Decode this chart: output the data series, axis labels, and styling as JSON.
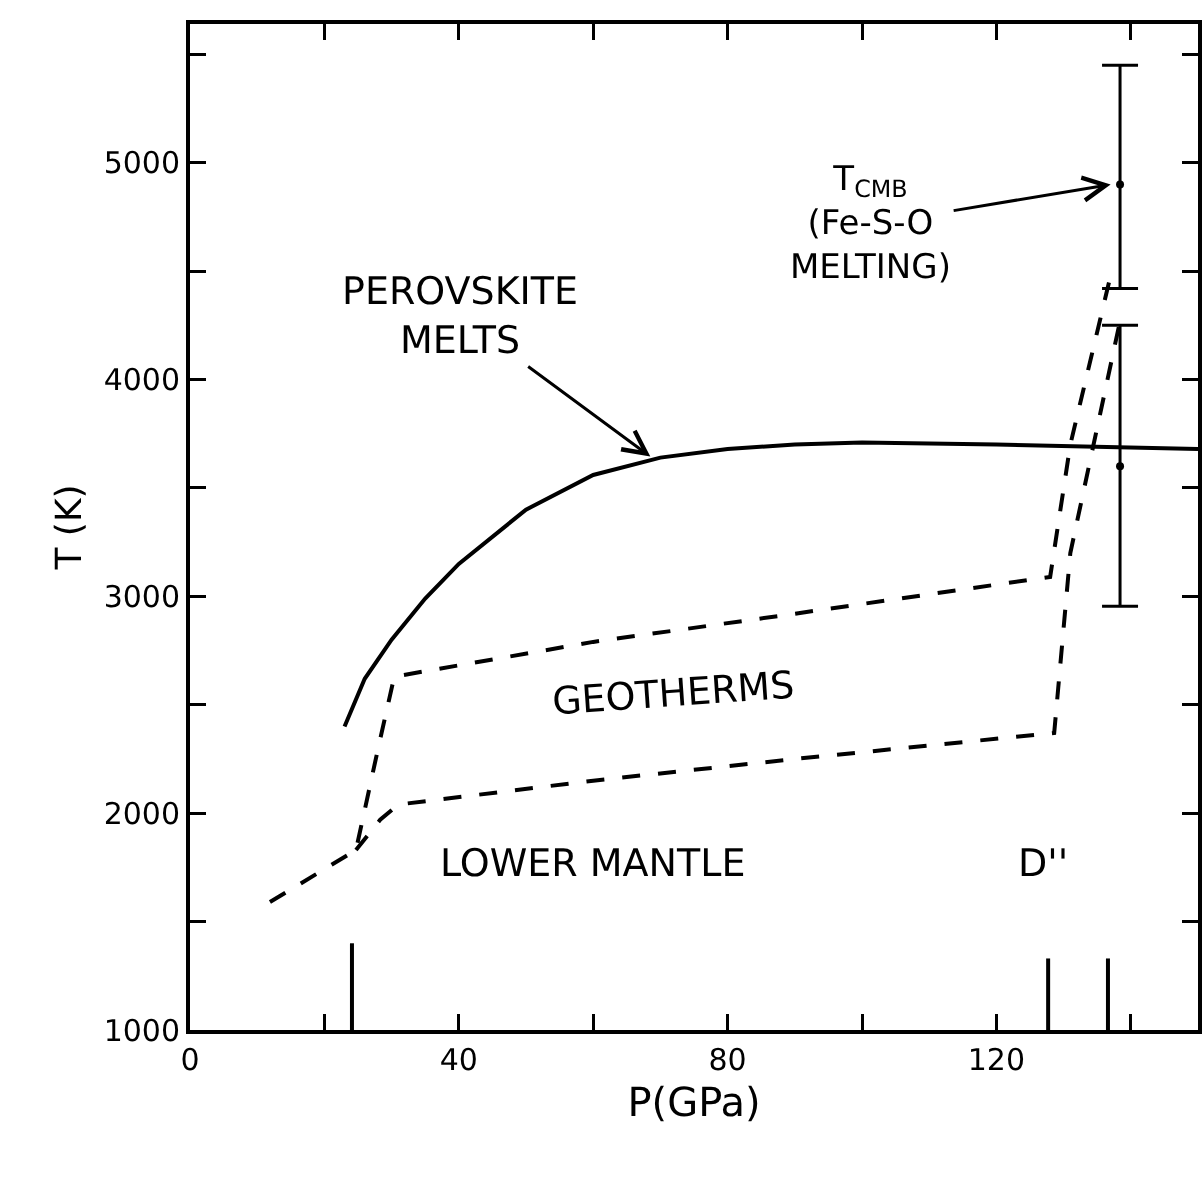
{
  "chart_data": {
    "type": "line",
    "xlabel": "P(GPa)",
    "ylabel": "T (K)",
    "xlim": [
      0,
      150
    ],
    "ylim": [
      1000,
      5640
    ],
    "xticks": [
      0,
      {
        "value": 20,
        "label": null
      },
      40,
      {
        "value": 60,
        "label": null
      },
      80,
      {
        "value": 100,
        "label": null
      },
      120,
      {
        "value": 140,
        "label": null
      }
    ],
    "yticks": [
      1000,
      {
        "value": 1500,
        "label": null
      },
      2000,
      {
        "value": 2500,
        "label": null
      },
      3000,
      {
        "value": 3500,
        "label": null
      },
      4000,
      {
        "value": 4500,
        "label": null
      },
      5000,
      {
        "value": 5500,
        "label": null
      }
    ],
    "grid": false,
    "marker": "none",
    "series": [
      {
        "line_style": "solid",
        "color": "#000000",
        "x": [
          23,
          26,
          30,
          35,
          40,
          50,
          60,
          70,
          80,
          90,
          100,
          120,
          150
        ],
        "values": [
          2400,
          2620,
          2800,
          2990,
          3150,
          3400,
          3560,
          3640,
          3680,
          3700,
          3710,
          3700,
          3680
        ]
      },
      {
        "line_style": "dashed",
        "color": "#000000",
        "x": [
          11.9,
          24.7,
          28,
          30.4,
          60,
          90,
          128,
          131,
          137
        ],
        "values": [
          1590,
          1830,
          2300,
          2630,
          2790,
          2920,
          3090,
          3700,
          4480
        ]
      },
      {
        "line_style": "dashed",
        "color": "#000000",
        "x": [
          24.7,
          28.3,
          31,
          60,
          90,
          128.6,
          131,
          138.4
        ],
        "values": [
          1830,
          1970,
          2040,
          2150,
          2250,
          2370,
          3200,
          4270
        ]
      },
      {
        "line_style": "solid",
        "color": "#000000",
        "x": [
          24.1,
          24.1
        ],
        "values": [
          1000,
          1400
        ]
      },
      {
        "line_style": "solid",
        "color": "#000000",
        "x": [
          127.7,
          127.7
        ],
        "values": [
          1000,
          1330
        ]
      },
      {
        "line_style": "solid",
        "color": "#000000",
        "x": [
          136.6,
          136.6
        ],
        "values": [
          1000,
          1330
        ]
      },
      {
        "type": "scatter",
        "marker": "circle",
        "color": "#000000",
        "x": [
          138.4,
          138.4
        ],
        "values": [
          4900,
          3600
        ],
        "errors": [
          [
            4420,
            5450
          ],
          [
            2955,
            4250
          ]
        ]
      }
    ],
    "annotations": [
      {
        "text": "PEROVSKITE\nMELTS",
        "x": 68.5,
        "y": 3645
      },
      {
        "text": "T$_{CMB}$\n(Fe-S-O\nMELTING)",
        "x": 137,
        "y": 4900
      },
      "GEOTHERMS",
      "LOWER MANTLE",
      "D''"
    ]
  }
}
